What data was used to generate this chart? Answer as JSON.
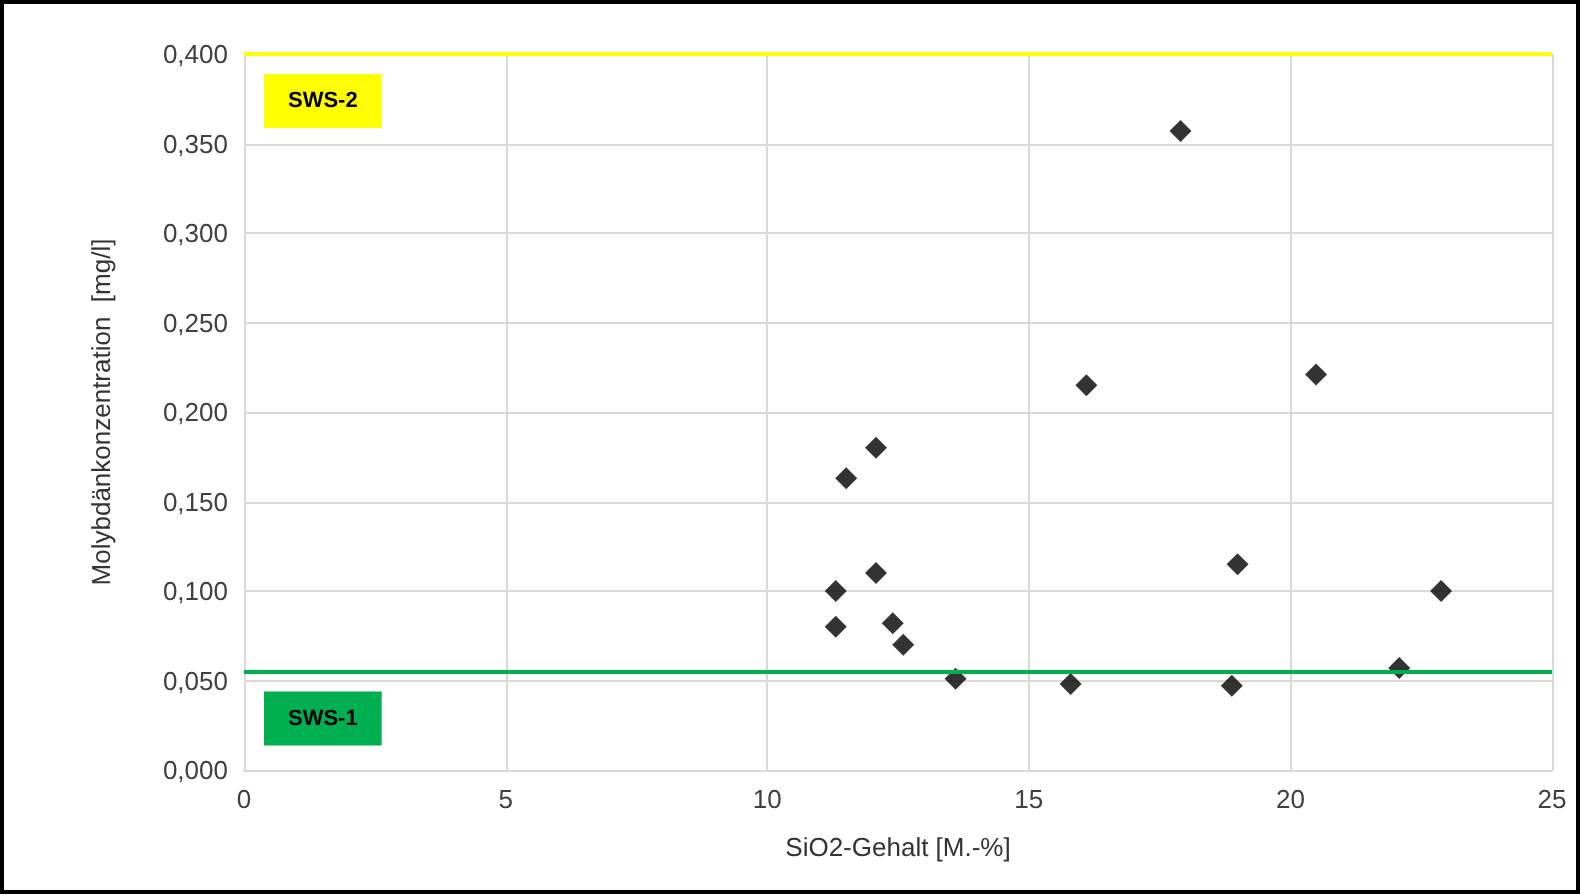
{
  "chart_data": {
    "type": "scatter",
    "xlabel": "SiO2-Gehalt [M.-%]",
    "ylabel": "Molybdänkonzentration  [mg/l]",
    "x": [
      12.08,
      11.51,
      12.08,
      11.31,
      11.31,
      12.4,
      12.6,
      13.6,
      17.9,
      16.1,
      20.49,
      18.99,
      22.88,
      15.8,
      18.88,
      22.08
    ],
    "values": [
      0.18,
      0.163,
      0.11,
      0.1,
      0.08,
      0.082,
      0.07,
      0.051,
      0.357,
      0.215,
      0.221,
      0.115,
      0.1,
      0.048,
      0.047,
      0.057
    ],
    "color": "#000000",
    "marker": "diamond",
    "grid": true,
    "xlim": [
      0,
      25
    ],
    "xticks": [
      0,
      5,
      10,
      15,
      20,
      25
    ],
    "ylim": [
      0,
      0.4
    ],
    "yticks": [
      {
        "value": 0,
        "label": "0,000"
      },
      {
        "value": 0.05,
        "label": "0,050"
      },
      {
        "value": 0.1,
        "label": "0,100"
      },
      {
        "value": 0.15,
        "label": "0,150"
      },
      {
        "value": 0.2,
        "label": "0,200"
      },
      {
        "value": 0.25,
        "label": "0,250"
      },
      {
        "value": 0.3,
        "label": "0,300"
      },
      {
        "value": 0.35,
        "label": "0,350"
      },
      {
        "value": 0.4,
        "label": "0,400"
      }
    ],
    "ref_lines": [
      {
        "axis": "y",
        "value": 0.055,
        "label": "SWS-1",
        "color": "#00b050"
      },
      {
        "axis": "y",
        "value": 0.4,
        "label": "SWS-2",
        "color": "#ffff00"
      }
    ]
  }
}
